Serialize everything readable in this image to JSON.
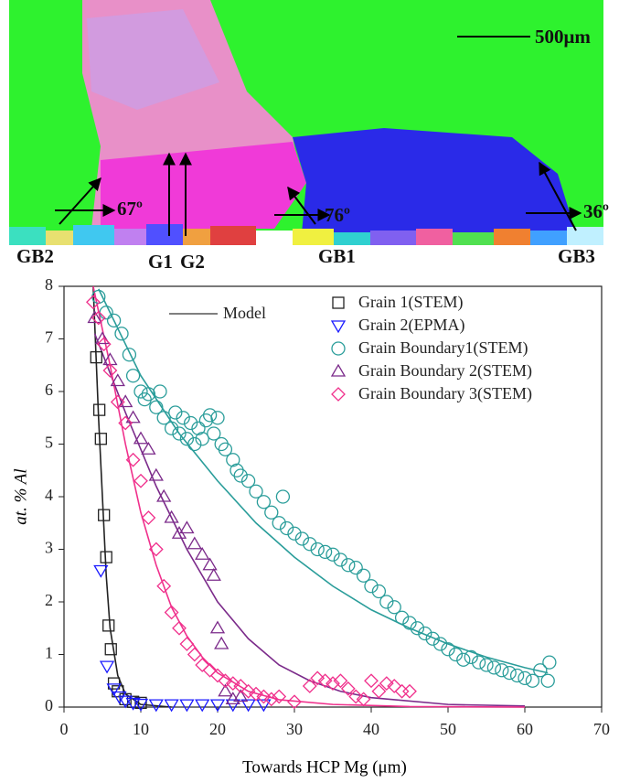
{
  "micrograph": {
    "scale_bar": "500μm",
    "labels": [
      "GB2",
      "G1",
      "G2",
      "GB1",
      "GB3",
      "67º",
      "76º",
      "36º"
    ]
  },
  "chart_data": {
    "type": "scatter",
    "x_label": "Towards HCP Mg (μm)",
    "y_label": "at. % Al",
    "xlim": [
      0,
      70
    ],
    "xticks": [
      0,
      10,
      20,
      30,
      40,
      50,
      60,
      70
    ],
    "ylim": [
      0,
      8
    ],
    "yticks": [
      0,
      1,
      2,
      3,
      4,
      5,
      6,
      7,
      8
    ],
    "series": [
      {
        "name": "Grain 1(STEM)",
        "color": "#222222",
        "marker": "square",
        "x": [
          4.2,
          4.6,
          4.8,
          5.2,
          5.5,
          5.8,
          6.1,
          6.5,
          7,
          8,
          9,
          10
        ],
        "values": [
          6.65,
          5.65,
          5.1,
          3.65,
          2.85,
          1.55,
          1.1,
          0.45,
          0.3,
          0.15,
          0.1,
          0.08
        ]
      },
      {
        "name": "Grain 2(EPMA)",
        "color": "#1a1aff",
        "marker": "triangle-down",
        "x": [
          4.8,
          5.6,
          6.5,
          7.2,
          8,
          9,
          10,
          12,
          14,
          16,
          18,
          20,
          22,
          24,
          26
        ],
        "values": [
          2.6,
          0.78,
          0.35,
          0.2,
          0.12,
          0.08,
          0.06,
          0.05,
          0.05,
          0.05,
          0.05,
          0.05,
          0.05,
          0.05,
          0.05
        ]
      },
      {
        "name": "Grain Boundary1(STEM)",
        "color": "#2a9d9a",
        "marker": "circle",
        "x": [
          4.5,
          5.5,
          6.5,
          7.5,
          8.5,
          9,
          10,
          10.5,
          11,
          12,
          12.5,
          13,
          14,
          14.5,
          15,
          15.5,
          16,
          16.5,
          17,
          17.5,
          18,
          18.5,
          19,
          19.5,
          20,
          20.5,
          21,
          22,
          22.5,
          23,
          24,
          25,
          26,
          27,
          28,
          28.5,
          29,
          30,
          31,
          32,
          33,
          34,
          35,
          36,
          37,
          38,
          39,
          40,
          41,
          42,
          43,
          44,
          45,
          46,
          47,
          48,
          49,
          50,
          51,
          52,
          53,
          54,
          55,
          56,
          57,
          58,
          59,
          60,
          61,
          62,
          63,
          63.2
        ],
        "values": [
          7.8,
          7.5,
          7.35,
          7.1,
          6.7,
          6.3,
          6.0,
          5.85,
          5.95,
          5.7,
          6.0,
          5.5,
          5.3,
          5.6,
          5.2,
          5.5,
          5.1,
          5.4,
          5.0,
          5.3,
          5.1,
          5.45,
          5.55,
          5.2,
          5.5,
          5.0,
          4.9,
          4.7,
          4.5,
          4.4,
          4.3,
          4.1,
          3.9,
          3.7,
          3.5,
          4.0,
          3.4,
          3.3,
          3.2,
          3.1,
          3.0,
          2.95,
          2.9,
          2.8,
          2.7,
          2.65,
          2.5,
          2.3,
          2.2,
          2.0,
          1.9,
          1.7,
          1.6,
          1.5,
          1.4,
          1.3,
          1.2,
          1.1,
          1.0,
          0.9,
          0.95,
          0.85,
          0.8,
          0.75,
          0.7,
          0.65,
          0.6,
          0.55,
          0.5,
          0.7,
          0.5,
          0.85
        ]
      },
      {
        "name": "Grain Boundary 2(STEM)",
        "color": "#7b2a8a",
        "marker": "triangle-up",
        "x": [
          4,
          5,
          6,
          7,
          8,
          9,
          10,
          11,
          12,
          13,
          14,
          15,
          16,
          17,
          18,
          19,
          19.5,
          20,
          20.5,
          21,
          22,
          23
        ],
        "values": [
          7.4,
          7.0,
          6.6,
          6.2,
          5.8,
          5.5,
          5.1,
          4.9,
          4.4,
          4.0,
          3.6,
          3.3,
          3.4,
          3.1,
          2.9,
          2.7,
          2.5,
          1.5,
          1.2,
          0.3,
          0.15,
          0.2
        ]
      },
      {
        "name": "Grain Boundary 3(STEM)",
        "color": "#f0308c",
        "marker": "diamond",
        "x": [
          3.8,
          4.5,
          5.2,
          6,
          7,
          8,
          9,
          10,
          11,
          12,
          13,
          14,
          15,
          16,
          17,
          18,
          19,
          20,
          21,
          22,
          23,
          24,
          25,
          26,
          27,
          28,
          30,
          32,
          33,
          34,
          35,
          36,
          37,
          38,
          39,
          40,
          41,
          42,
          43,
          44,
          45
        ],
        "values": [
          7.7,
          7.4,
          6.9,
          6.4,
          5.8,
          5.4,
          4.7,
          4.3,
          3.6,
          3.0,
          2.3,
          1.8,
          1.5,
          1.2,
          1.0,
          0.8,
          0.7,
          0.6,
          0.5,
          0.45,
          0.4,
          0.3,
          0.25,
          0.2,
          0.15,
          0.2,
          0.1,
          0.4,
          0.55,
          0.5,
          0.45,
          0.5,
          0.35,
          0.2,
          0.15,
          0.5,
          0.3,
          0.45,
          0.4,
          0.3,
          0.3
        ]
      }
    ],
    "model": {
      "name": "Model",
      "color": "#555555",
      "curves": [
        {
          "color": "#222222",
          "x": [
            3.8,
            4.5,
            5,
            5.5,
            6,
            7,
            8,
            10,
            14
          ],
          "values": [
            8,
            5.5,
            4,
            2.5,
            1.5,
            0.6,
            0.25,
            0.05,
            0
          ]
        },
        {
          "color": "#2a9d9a",
          "x": [
            4.5,
            10,
            15,
            20,
            25,
            30,
            35,
            40,
            45,
            50,
            55,
            60,
            63
          ],
          "values": [
            7.95,
            6.3,
            5.2,
            4.3,
            3.5,
            2.85,
            2.3,
            1.85,
            1.5,
            1.2,
            0.95,
            0.75,
            0.65
          ]
        },
        {
          "color": "#7b2a8a",
          "x": [
            4,
            8,
            12,
            16,
            20,
            24,
            28,
            32,
            36,
            40,
            50,
            60
          ],
          "values": [
            7.1,
            5.6,
            4.2,
            3.0,
            2.0,
            1.3,
            0.8,
            0.5,
            0.3,
            0.18,
            0.05,
            0.02
          ]
        },
        {
          "color": "#f0308c",
          "x": [
            3.8,
            6,
            8,
            10,
            12,
            14,
            16,
            18,
            20,
            24,
            28,
            35,
            45,
            60
          ],
          "values": [
            8,
            6.5,
            5.0,
            3.7,
            2.7,
            1.9,
            1.35,
            0.95,
            0.65,
            0.3,
            0.14,
            0.05,
            0.01,
            0
          ]
        }
      ]
    }
  }
}
